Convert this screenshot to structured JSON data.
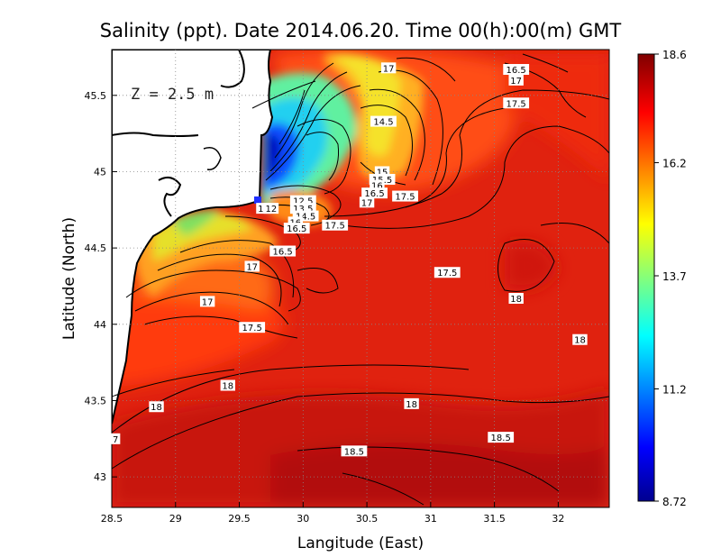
{
  "title": "Salinity (ppt). Date 2014.06.20. Time 00(h):00(m) GMT",
  "depth_label": "Z = 2.5 m",
  "chart_data": {
    "type": "heatmap",
    "variable": "Salinity (ppt)",
    "xlabel": "Langitude (East)",
    "ylabel": "Latitude (North)",
    "xlim": [
      28.5,
      32.4
    ],
    "ylim": [
      42.8,
      45.8
    ],
    "xticks": [
      "28.5",
      "29",
      "29.5",
      "30",
      "30.5",
      "31",
      "31.5",
      "32"
    ],
    "yticks": [
      "43",
      "43.5",
      "44",
      "44.5",
      "45",
      "45.5"
    ],
    "grid": true,
    "colorbar": {
      "min": 8.72,
      "max": 18.6,
      "ticks": [
        "18.6",
        "16.2",
        "13.7",
        "11.2",
        "8.72"
      ],
      "colormap": "jet",
      "colors": [
        "#00008f",
        "#0000ff",
        "#00ffff",
        "#ffff00",
        "#ff0000",
        "#800000"
      ]
    },
    "contour_labels": [
      {
        "text": "17",
        "lon": 30.67,
        "lat": 45.68
      },
      {
        "text": "16.5",
        "lon": 31.67,
        "lat": 45.67
      },
      {
        "text": "17",
        "lon": 31.67,
        "lat": 45.6
      },
      {
        "text": "17.5",
        "lon": 31.67,
        "lat": 45.45
      },
      {
        "text": "14.5",
        "lon": 30.63,
        "lat": 45.33
      },
      {
        "text": "15",
        "lon": 30.62,
        "lat": 45.0
      },
      {
        "text": "15.5",
        "lon": 30.62,
        "lat": 44.95
      },
      {
        "text": "16",
        "lon": 30.58,
        "lat": 44.91
      },
      {
        "text": "16.5",
        "lon": 30.56,
        "lat": 44.86
      },
      {
        "text": "17",
        "lon": 30.5,
        "lat": 44.8
      },
      {
        "text": "17.5",
        "lon": 30.8,
        "lat": 44.84
      },
      {
        "text": "12.5",
        "lon": 30.0,
        "lat": 44.81
      },
      {
        "text": "13.5",
        "lon": 30.0,
        "lat": 44.76
      },
      {
        "text": "14.5",
        "lon": 30.02,
        "lat": 44.71
      },
      {
        "text": "16",
        "lon": 29.94,
        "lat": 44.67
      },
      {
        "text": "16.5",
        "lon": 29.95,
        "lat": 44.63
      },
      {
        "text": "17.5",
        "lon": 30.25,
        "lat": 44.65
      },
      {
        "text": "11",
        "lon": 29.69,
        "lat": 44.76
      },
      {
        "text": "12",
        "lon": 29.75,
        "lat": 44.76
      },
      {
        "text": "16.5",
        "lon": 29.84,
        "lat": 44.48
      },
      {
        "text": "17",
        "lon": 29.6,
        "lat": 44.38
      },
      {
        "text": "17.5",
        "lon": 31.13,
        "lat": 44.34
      },
      {
        "text": "18",
        "lon": 31.67,
        "lat": 44.17
      },
      {
        "text": "17",
        "lon": 29.25,
        "lat": 44.15
      },
      {
        "text": "17.5",
        "lon": 29.6,
        "lat": 43.98
      },
      {
        "text": "18",
        "lon": 32.17,
        "lat": 43.9
      },
      {
        "text": "18",
        "lon": 29.41,
        "lat": 43.6
      },
      {
        "text": "18",
        "lon": 28.85,
        "lat": 43.46
      },
      {
        "text": "18",
        "lon": 30.85,
        "lat": 43.48
      },
      {
        "text": "7",
        "lon": 28.53,
        "lat": 43.25
      },
      {
        "text": "18.5",
        "lon": 31.55,
        "lat": 43.26
      },
      {
        "text": "18.5",
        "lon": 30.4,
        "lat": 43.17
      }
    ]
  }
}
